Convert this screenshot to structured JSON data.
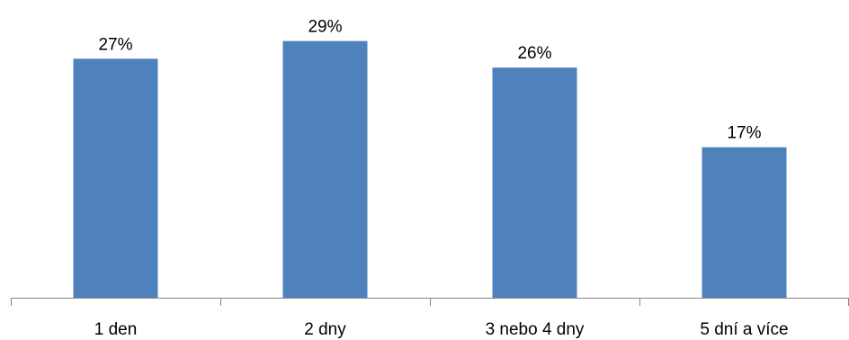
{
  "chart_data": {
    "type": "bar",
    "categories": [
      "1 den",
      "2 dny",
      "3 nebo 4 dny",
      "5 dní a více"
    ],
    "values": [
      27,
      29,
      26,
      17
    ],
    "value_labels": [
      "27%",
      "29%",
      "26%",
      "17%"
    ],
    "unit": "%",
    "title": "",
    "xlabel": "",
    "ylabel": "",
    "ylim": [
      0,
      31.4
    ],
    "grid": false,
    "legend": "none",
    "bar_color": "#4f81bd",
    "axis_color": "#868686"
  }
}
